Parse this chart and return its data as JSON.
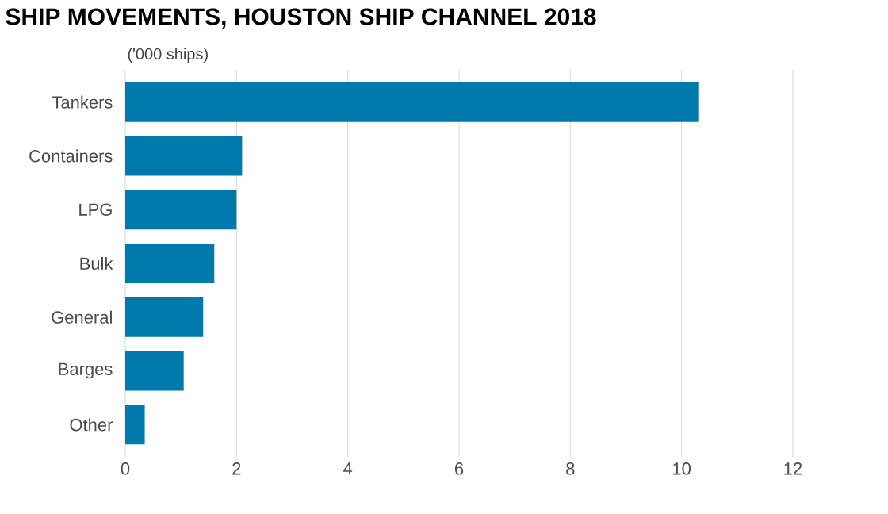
{
  "chart_data": {
    "type": "bar",
    "orientation": "horizontal",
    "title": "SHIP MOVEMENTS, HOUSTON SHIP CHANNEL 2018",
    "subtitle": "('000 ships)",
    "categories": [
      "Tankers",
      "Containers",
      "LPG",
      "Bulk",
      "General",
      "Barges",
      "Other"
    ],
    "values": [
      10.3,
      2.1,
      2.0,
      1.6,
      1.4,
      1.05,
      0.35
    ],
    "color": "#0079ad",
    "xlim": [
      0,
      12
    ],
    "xticks": [
      0,
      2,
      4,
      6,
      8,
      10,
      12
    ],
    "grid": "x"
  }
}
